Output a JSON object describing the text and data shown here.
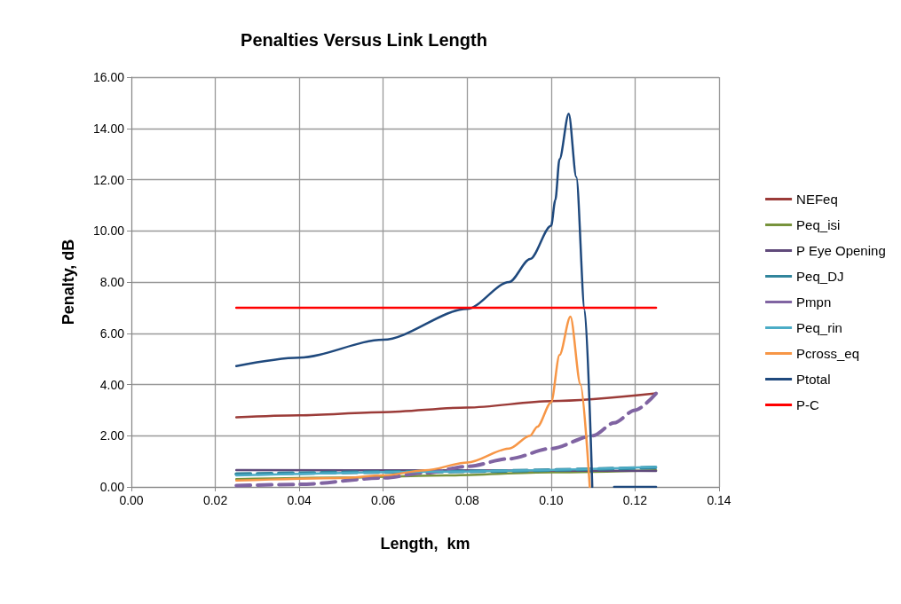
{
  "chart_data": {
    "type": "line",
    "title": "Penalties Versus Link Length",
    "xlabel": "Length,  km",
    "ylabel": "Penalty, dB",
    "xlim": [
      0,
      0.14
    ],
    "xticks": [
      {
        "value": 0,
        "label": "0.00"
      },
      {
        "value": 0.02,
        "label": "0.02"
      },
      {
        "value": 0.04,
        "label": "0.04"
      },
      {
        "value": 0.06,
        "label": "0.06"
      },
      {
        "value": 0.08,
        "label": "0.08"
      },
      {
        "value": 0.1,
        "label": "0.10"
      },
      {
        "value": 0.12,
        "label": "0.12"
      },
      {
        "value": 0.14,
        "label": "0.14"
      }
    ],
    "ylim": [
      0,
      16
    ],
    "yticks": [
      {
        "value": 0,
        "label": "0.00"
      },
      {
        "value": 2,
        "label": "2.00"
      },
      {
        "value": 4,
        "label": "4.00"
      },
      {
        "value": 6,
        "label": "6.00"
      },
      {
        "value": 8,
        "label": "8.00"
      },
      {
        "value": 10,
        "label": "10.00"
      },
      {
        "value": 12,
        "label": "12.00"
      },
      {
        "value": 14,
        "label": "14.00"
      },
      {
        "value": 16,
        "label": "16.00"
      }
    ],
    "grid": true,
    "legend": "right",
    "marker": "none",
    "series": [
      {
        "name": "NEFeq",
        "color": "#9b3b38",
        "x": [
          0.025,
          0.04,
          0.06,
          0.08,
          0.1,
          0.125
        ],
        "values": [
          2.72,
          2.8,
          2.92,
          3.1,
          3.35,
          3.65
        ]
      },
      {
        "name": "Peq_isi",
        "color": "#77933c",
        "x": [
          0.025,
          0.05,
          0.075,
          0.1,
          0.125
        ],
        "values": [
          0.3,
          0.36,
          0.45,
          0.57,
          0.65
        ]
      },
      {
        "name": "P Eye Opening",
        "color": "#604a7b",
        "x": [
          0.025,
          0.075,
          0.125
        ],
        "values": [
          0.66,
          0.65,
          0.62
        ]
      },
      {
        "name": "Peq_DJ",
        "color": "#31859c",
        "line_style": "dashed",
        "x": [
          0.025,
          0.075,
          0.125
        ],
        "values": [
          0.5,
          0.6,
          0.76
        ]
      },
      {
        "name": "Pmpn",
        "color": "#8064a2",
        "line_style": "dashed",
        "x": [
          0.025,
          0.04,
          0.06,
          0.07,
          0.08,
          0.09,
          0.1,
          0.11,
          0.115,
          0.12,
          0.125
        ],
        "values": [
          0.05,
          0.1,
          0.35,
          0.55,
          0.8,
          1.1,
          1.5,
          2.0,
          2.5,
          3.0,
          3.65
        ]
      },
      {
        "name": "Peq_rin",
        "color": "#4bacc6",
        "x": [
          0.025,
          0.075,
          0.125
        ],
        "values": [
          0.45,
          0.6,
          0.78
        ]
      },
      {
        "name": "Pcross_eq",
        "color": "#f79646",
        "x": [
          0.025,
          0.05,
          0.06,
          0.07,
          0.08,
          0.09,
          0.095,
          0.0967,
          0.1,
          0.102,
          0.1046,
          0.107,
          0.1092
        ],
        "values": [
          0.25,
          0.35,
          0.45,
          0.65,
          0.95,
          1.5,
          2.0,
          2.35,
          3.3,
          5.15,
          6.65,
          4.0,
          0
        ]
      },
      {
        "name": "Ptotal",
        "color": "#1f497d",
        "x": [
          0.025,
          0.04,
          0.06,
          0.08,
          0.09,
          0.095,
          0.1,
          0.101,
          0.102,
          0.1042,
          0.106,
          0.108,
          0.1098,
          0.1125,
          0.115,
          0.12,
          0.125
        ],
        "values": [
          4.72,
          5.05,
          5.75,
          6.95,
          8.0,
          8.9,
          10.2,
          11.2,
          12.8,
          14.57,
          12.1,
          6.9,
          0,
          null,
          0,
          0,
          0
        ]
      },
      {
        "name": "P-C",
        "color": "#ff0000",
        "x": [
          0.025,
          0.125
        ],
        "values": [
          7.0,
          7.0
        ]
      }
    ]
  }
}
